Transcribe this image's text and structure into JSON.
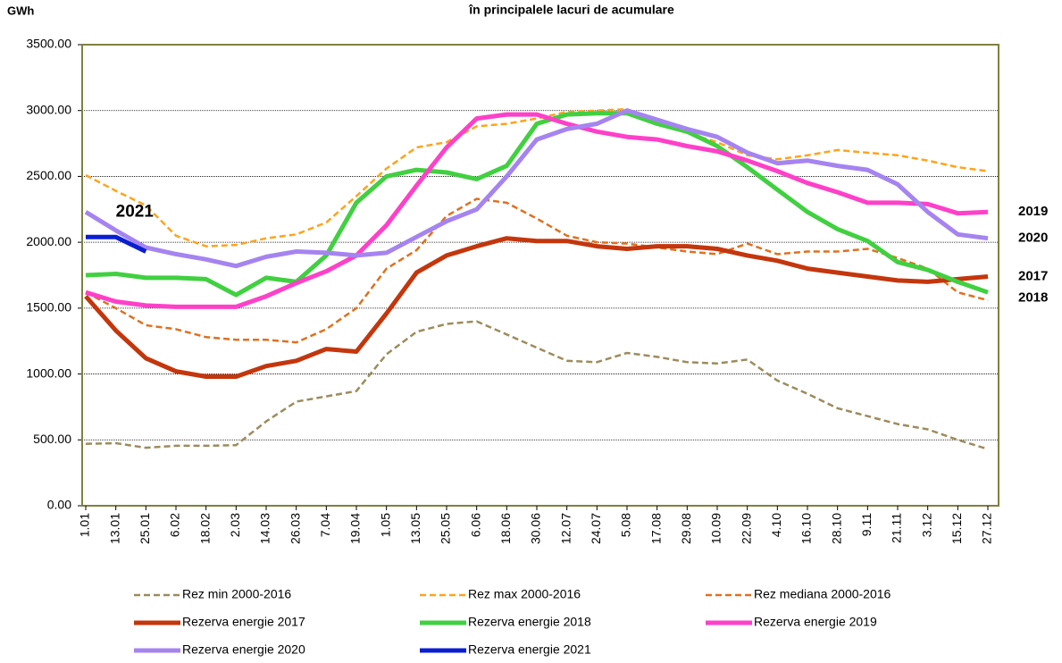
{
  "chart_data": {
    "type": "line",
    "title": "în principalele lacuri de acumulare",
    "y_label": "GWh",
    "categories": [
      "1.01",
      "13.01",
      "25.01",
      "6.02",
      "18.02",
      "2.03",
      "14.03",
      "26.03",
      "7.04",
      "19.04",
      "1.05",
      "13.05",
      "25.05",
      "6.06",
      "18.06",
      "30.06",
      "12.07",
      "24.07",
      "5.08",
      "17.08",
      "29.08",
      "10.09",
      "22.09",
      "4.10",
      "16.10",
      "28.10",
      "9.11",
      "21.11",
      "3.12",
      "15.12",
      "27.12"
    ],
    "ylim": [
      0,
      3500
    ],
    "yticks": [
      {
        "value": 0,
        "label": "0.00"
      },
      {
        "value": 500,
        "label": "500.00"
      },
      {
        "value": 1000,
        "label": "1000.00"
      },
      {
        "value": 1500,
        "label": "1500.00"
      },
      {
        "value": 2000,
        "label": "2000.00"
      },
      {
        "value": 2500,
        "label": "2500.00"
      },
      {
        "value": 3000,
        "label": "3000.00"
      },
      {
        "value": 3500,
        "label": "3500.00"
      }
    ],
    "grid": true,
    "series": [
      {
        "name": "Rez min 2000-2016",
        "color": "#9c8c5c",
        "dash": true,
        "values": [
          470,
          475,
          440,
          455,
          455,
          460,
          640,
          790,
          830,
          870,
          1150,
          1320,
          1380,
          1400,
          1300,
          1200,
          1100,
          1090,
          1160,
          1130,
          1090,
          1080,
          1110,
          950,
          850,
          740,
          680,
          620,
          580,
          500,
          430
        ]
      },
      {
        "name": "Rez max 2000-2016",
        "color": "#ffa31a",
        "dash": true,
        "values": [
          2510,
          2390,
          2280,
          2050,
          1970,
          1980,
          2030,
          2060,
          2150,
          2350,
          2560,
          2720,
          2760,
          2880,
          2900,
          2940,
          2990,
          3000,
          3010,
          2900,
          2830,
          2760,
          2660,
          2630,
          2660,
          2700,
          2680,
          2660,
          2620,
          2570,
          2540
        ]
      },
      {
        "name": "Rez mediana 2000-2016",
        "color": "#e0701e",
        "dash": true,
        "values": [
          1620,
          1500,
          1370,
          1340,
          1280,
          1260,
          1260,
          1240,
          1340,
          1500,
          1800,
          1940,
          2200,
          2330,
          2300,
          2180,
          2050,
          2000,
          1990,
          1960,
          1930,
          1910,
          1990,
          1910,
          1930,
          1930,
          1950,
          1880,
          1800,
          1620,
          1560
        ]
      },
      {
        "name": "Rezerva energie 2017",
        "color": "#c4360c",
        "dash": false,
        "tag": "2017",
        "values": [
          1590,
          1330,
          1120,
          1020,
          980,
          980,
          1060,
          1100,
          1190,
          1170,
          1460,
          1770,
          1900,
          1970,
          2030,
          2010,
          2010,
          1970,
          1950,
          1970,
          1970,
          1950,
          1900,
          1860,
          1800,
          1770,
          1740,
          1710,
          1700,
          1720,
          1740
        ]
      },
      {
        "name": "Rezerva energie 2018",
        "color": "#40d040",
        "dash": false,
        "tag": "2018",
        "values": [
          1750,
          1760,
          1730,
          1730,
          1720,
          1600,
          1730,
          1700,
          1900,
          2300,
          2500,
          2550,
          2530,
          2480,
          2580,
          2900,
          2970,
          2980,
          2980,
          2900,
          2840,
          2730,
          2570,
          2400,
          2230,
          2100,
          2010,
          1850,
          1790,
          1700,
          1620
        ]
      },
      {
        "name": "Rezerva energie 2019",
        "color": "#ff40c8",
        "dash": false,
        "tag": "2019",
        "values": [
          1620,
          1550,
          1520,
          1510,
          1510,
          1510,
          1590,
          1690,
          1780,
          1900,
          2130,
          2430,
          2720,
          2940,
          2970,
          2970,
          2900,
          2840,
          2800,
          2780,
          2730,
          2690,
          2620,
          2540,
          2450,
          2380,
          2300,
          2300,
          2290,
          2220,
          2230
        ]
      },
      {
        "name": "Rezerva energie 2020",
        "color": "#a584f0",
        "dash": false,
        "tag": "2020",
        "values": [
          2230,
          2090,
          1960,
          1910,
          1870,
          1820,
          1890,
          1930,
          1920,
          1900,
          1920,
          2040,
          2160,
          2250,
          2500,
          2780,
          2860,
          2900,
          3000,
          2930,
          2860,
          2800,
          2680,
          2600,
          2620,
          2580,
          2550,
          2440,
          2230,
          2060,
          2030
        ]
      },
      {
        "name": "Rezerva energie 2021",
        "color": "#0a1ed2",
        "dash": false,
        "tag": "2021",
        "values": [
          2040,
          2040,
          1930,
          null,
          null,
          null,
          null,
          null,
          null,
          null,
          null,
          null,
          null,
          null,
          null,
          null,
          null,
          null,
          null,
          null,
          null,
          null,
          null,
          null,
          null,
          null,
          null,
          null,
          null,
          null,
          null
        ]
      }
    ]
  }
}
